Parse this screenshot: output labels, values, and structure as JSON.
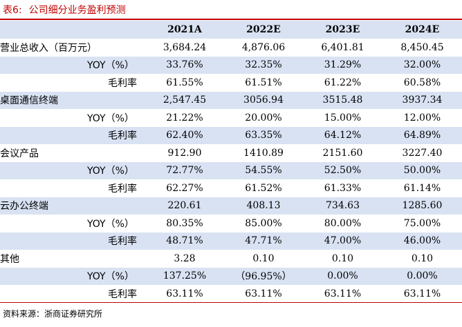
{
  "header": {
    "table_no": "表6:",
    "title": "公司细分业务盈利预测"
  },
  "table": {
    "columns": [
      "",
      "2021A",
      "2022E",
      "2023E",
      "2024E"
    ],
    "rows": [
      {
        "label": "营业总收入（百万元）",
        "level": 0,
        "values": [
          "3,684.24",
          "4,876.06",
          "6,401.81",
          "8,450.45"
        ]
      },
      {
        "label": "YOY（%）",
        "level": 1,
        "values": [
          "33.76%",
          "32.35%",
          "31.29%",
          "32.00%"
        ]
      },
      {
        "label": "毛利率",
        "level": 2,
        "values": [
          "61.55%",
          "61.51%",
          "61.22%",
          "60.58%"
        ]
      },
      {
        "label": "桌面通信终端",
        "level": 0,
        "values": [
          "2,547.45",
          "3056.94",
          "3515.48",
          "3937.34"
        ]
      },
      {
        "label": "YOY（%）",
        "level": 1,
        "values": [
          "21.22%",
          "20.00%",
          "15.00%",
          "12.00%"
        ]
      },
      {
        "label": "毛利率",
        "level": 2,
        "values": [
          "62.40%",
          "63.35%",
          "64.12%",
          "64.89%"
        ]
      },
      {
        "label": "会议产品",
        "level": 0,
        "values": [
          "912.90",
          "1410.89",
          "2151.60",
          "3227.40"
        ]
      },
      {
        "label": "YOY（%）",
        "level": 1,
        "values": [
          "72.77%",
          "54.55%",
          "52.50%",
          "50.00%"
        ]
      },
      {
        "label": "毛利率",
        "level": 2,
        "values": [
          "62.27%",
          "61.52%",
          "61.33%",
          "61.14%"
        ]
      },
      {
        "label": "云办公终端",
        "level": 0,
        "values": [
          "220.61",
          "408.13",
          "734.63",
          "1285.60"
        ]
      },
      {
        "label": "YOY（%）",
        "level": 1,
        "values": [
          "80.35%",
          "85.00%",
          "80.00%",
          "75.00%"
        ]
      },
      {
        "label": "毛利率",
        "level": 2,
        "values": [
          "48.71%",
          "47.71%",
          "47.00%",
          "46.00%"
        ]
      },
      {
        "label": "其他",
        "level": 0,
        "values": [
          "3.28",
          "0.10",
          "0.10",
          "0.10"
        ]
      },
      {
        "label": "YOY（%）",
        "level": 1,
        "values": [
          "137.25%",
          "（96.95%）",
          "0.00%",
          "0.00%"
        ]
      },
      {
        "label": "毛利率",
        "level": 2,
        "values": [
          "63.11%",
          "63.11%",
          "63.11%",
          "63.11%"
        ]
      }
    ]
  },
  "footer": {
    "source": "资料来源：浙商证券研究所"
  },
  "colors": {
    "accent_red": "#c00000",
    "row_shade": "#d9e2f3"
  }
}
